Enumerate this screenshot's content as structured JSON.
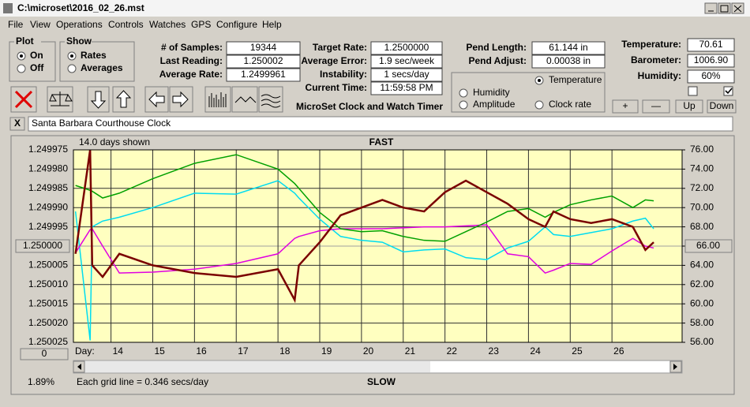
{
  "window": {
    "title": "C:\\microset\\2016_02_26.mst",
    "menu": [
      "File",
      "View",
      "Operations",
      "Controls",
      "Watches",
      "GPS",
      "Configure",
      "Help"
    ]
  },
  "plot_group": {
    "label": "Plot",
    "options": [
      "On",
      "Off"
    ],
    "selected": 0
  },
  "show_group": {
    "label": "Show",
    "options": [
      "Rates",
      "Averages"
    ],
    "selected": 0
  },
  "fields": [
    {
      "label": "# of Samples:",
      "value": "19344"
    },
    {
      "label": "Last Reading:",
      "value": "1.250002"
    },
    {
      "label": "Average Rate:",
      "value": "1.2499961"
    },
    {
      "label": "Target Rate:",
      "value": "1.2500000"
    },
    {
      "label": "Average Error:",
      "value": "1.9 sec/week"
    },
    {
      "label": "Instability:",
      "value": "1 secs/day"
    },
    {
      "label": "Current Time:",
      "value": "11:59:58 PM"
    },
    {
      "label": "Pend Length:",
      "value": "61.144 in"
    },
    {
      "label": "Pend Adjust:",
      "value": "0.00038 in"
    },
    {
      "label": "Temperature:",
      "value": "70.61"
    },
    {
      "label": "Barometer:",
      "value": "1006.90"
    },
    {
      "label": "Humidity:",
      "value": "60%"
    }
  ],
  "program_name": "MicroSet Clock and Watch Timer",
  "checkboxes": [
    false,
    true
  ],
  "buttons": [
    "+",
    "—",
    "Up",
    "Down"
  ],
  "close_label": "X",
  "clock_name": "Santa Barbara Courthouse Clock",
  "chart_data": {
    "type": "line",
    "title": "FAST",
    "footer": "SLOW",
    "subtitle": "14.0 days shown",
    "grid_note": "Each grid line = 0.346 secs/day",
    "percent_label": "1.89%",
    "slider_value": "0",
    "x_label": "Day:",
    "xlim": [
      13.1,
      27.68
    ],
    "xticks": [
      14,
      15,
      16,
      17,
      18,
      19,
      20,
      21,
      22,
      23,
      24,
      25,
      26
    ],
    "ylim": [
      1.250025,
      1.249975
    ],
    "yticks": [
      {
        "value": 1.249975,
        "label": "1.249975"
      },
      {
        "value": 1.24998,
        "label": "1.249980"
      },
      {
        "value": 1.249985,
        "label": "1.249985"
      },
      {
        "value": 1.24999,
        "label": "1.249990"
      },
      {
        "value": 1.249995,
        "label": "1.249995"
      },
      {
        "value": 1.25,
        "label": "1.250000"
      },
      {
        "value": 1.250005,
        "label": "1.250005"
      },
      {
        "value": 1.25001,
        "label": "1.250010"
      },
      {
        "value": 1.250015,
        "label": "1.250015"
      },
      {
        "value": 1.25002,
        "label": "1.250020"
      },
      {
        "value": 1.250025,
        "label": "1.250025"
      }
    ],
    "y2lim": [
      56,
      76
    ],
    "y2ticks": [
      {
        "value": 76,
        "label": "76.00"
      },
      {
        "value": 74,
        "label": "74.00"
      },
      {
        "value": 72,
        "label": "72.00"
      },
      {
        "value": 70,
        "label": "70.00"
      },
      {
        "value": 68,
        "label": "68.00"
      },
      {
        "value": 66,
        "label": "66.00"
      },
      {
        "value": 64,
        "label": "64.00"
      },
      {
        "value": 62,
        "label": "62.00"
      },
      {
        "value": 60,
        "label": "60.00"
      },
      {
        "value": 58,
        "label": "58.00"
      },
      {
        "value": 56,
        "label": "56.00"
      }
    ],
    "grid": true,
    "x": [
      13.15,
      13.5,
      13.55,
      13.8,
      14.2,
      15,
      16,
      17,
      18,
      18.4,
      18.5,
      19,
      19.5,
      20,
      20.5,
      21,
      21.5,
      22,
      22.5,
      23,
      23.5,
      24,
      24.4,
      24.6,
      25,
      25.5,
      26,
      26.5,
      26.8,
      27
    ],
    "series": [
      {
        "name": "Clock rate",
        "color": "#7a0000",
        "values": [
          1.250002,
          1.249975,
          1.250005,
          1.250008,
          1.250002,
          1.250005,
          1.250007,
          1.250008,
          1.250006,
          1.250014,
          1.250005,
          1.249999,
          1.249992,
          1.24999,
          1.249988,
          1.24999,
          1.249991,
          1.249986,
          1.249983,
          1.249986,
          1.249989,
          1.249993,
          1.249995,
          1.249991,
          1.249993,
          1.249994,
          1.249993,
          1.249995,
          1.250001,
          1.249999
        ]
      },
      {
        "name": "Temperature",
        "color": "#00a000",
        "axis": "y2",
        "selected": true,
        "values": [
          72.3,
          71.8,
          71.7,
          71.0,
          71.5,
          73.0,
          74.6,
          75.5,
          74.0,
          72.5,
          72.0,
          69.5,
          67.8,
          67.5,
          67.6,
          67.0,
          66.6,
          66.5,
          67.5,
          68.5,
          69.6,
          69.9,
          69.0,
          69.5,
          70.3,
          70.8,
          71.2,
          70.0,
          70.8,
          70.7
        ]
      },
      {
        "name": "Humidity",
        "color": "#e000e0",
        "axis": "y2",
        "values": [
          65.3,
          67.7,
          67.8,
          66.0,
          63.2,
          63.3,
          63.6,
          64.2,
          65.2,
          66.8,
          67.0,
          67.6,
          67.8,
          67.8,
          67.8,
          67.9,
          68.0,
          68.0,
          68.1,
          68.2,
          65.2,
          64.9,
          63.2,
          63.5,
          64.2,
          64.1,
          65.5,
          66.8,
          66.0,
          65.8
        ]
      },
      {
        "name": "Amplitude",
        "color": "#00dcf0",
        "axis": "y2",
        "values": [
          69.6,
          56.2,
          68.0,
          68.6,
          69.0,
          70.0,
          71.5,
          71.4,
          72.8,
          71.5,
          71.0,
          68.8,
          67.0,
          66.6,
          66.4,
          65.4,
          65.6,
          65.7,
          64.8,
          64.6,
          65.8,
          66.5,
          68.0,
          67.2,
          67.0,
          67.4,
          67.8,
          68.6,
          68.9,
          67.8
        ]
      }
    ]
  }
}
